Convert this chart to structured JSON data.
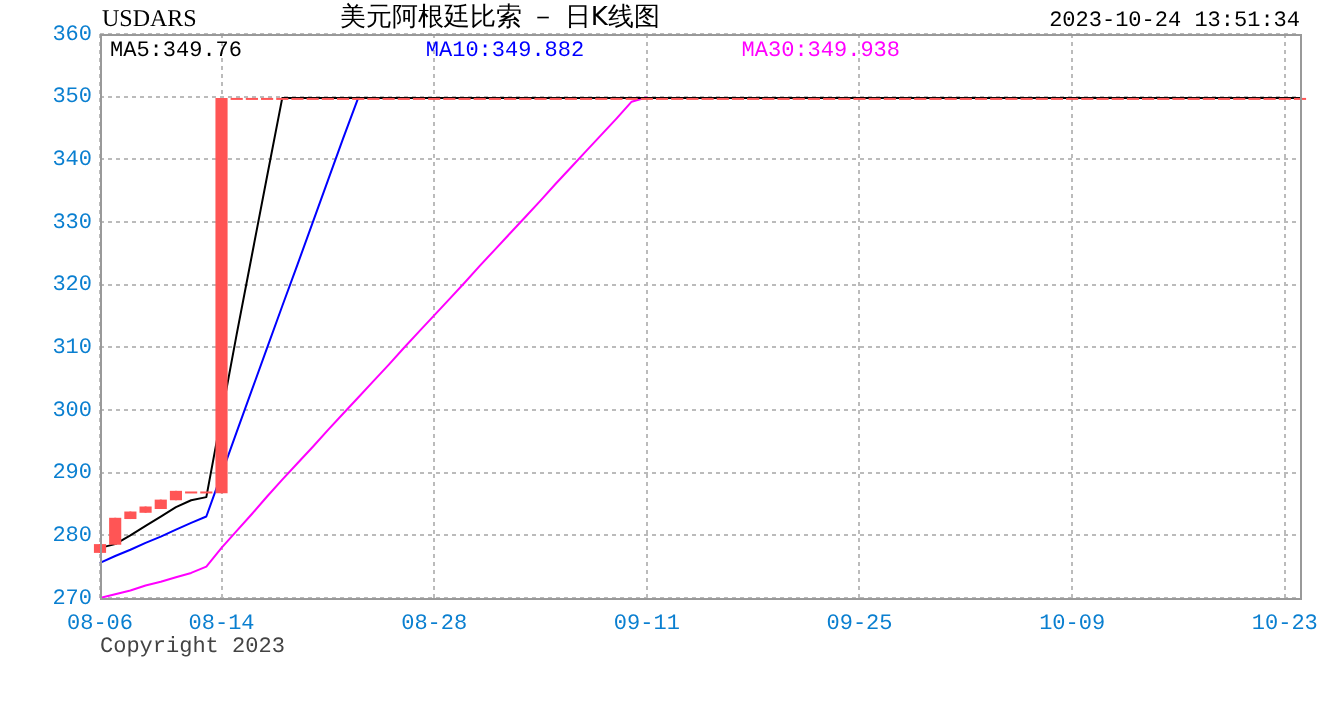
{
  "chart_data": {
    "type": "candlestick",
    "title": "美元阿根廷比索 － 日K线图",
    "ylabel": "USDARS",
    "color": "#ff5555",
    "categories": [
      "08-06",
      null,
      null,
      null,
      null,
      null,
      null,
      null,
      "08-14",
      null,
      null,
      null,
      null,
      null,
      null,
      null,
      null,
      null,
      null,
      null,
      null,
      null,
      "08-28",
      null,
      null,
      null,
      null,
      null,
      null,
      null,
      null,
      null,
      null,
      null,
      null,
      null,
      "09-11",
      null,
      null,
      null,
      null,
      null,
      null,
      null,
      null,
      null,
      null,
      null,
      null,
      null,
      "09-25",
      null,
      null,
      null,
      null,
      null,
      null,
      null,
      null,
      null,
      null,
      null,
      null,
      null,
      "10-09",
      null,
      null,
      null,
      null,
      null,
      null,
      null,
      null,
      null,
      null,
      null,
      null,
      null,
      "10-23",
      null
    ],
    "ohlc": [
      [
        277.2,
        278.6,
        277.2,
        278.6
      ],
      [
        278.5,
        282.8,
        278.5,
        282.8
      ],
      [
        282.6,
        283.8,
        282.6,
        283.8
      ],
      [
        283.6,
        284.6,
        283.6,
        284.6
      ],
      [
        284.2,
        285.7,
        284.2,
        285.7
      ],
      [
        285.6,
        287.1,
        285.6,
        287.1
      ],
      [
        287,
        287,
        287,
        287
      ],
      [
        287,
        287,
        287,
        287
      ],
      [
        286.7,
        349.8,
        286.7,
        349.8
      ],
      [
        349.8,
        349.8,
        349.8,
        349.8
      ],
      [
        349.8,
        349.8,
        349.8,
        349.8
      ],
      [
        349.8,
        349.8,
        349.8,
        349.8
      ],
      [
        349.8,
        349.8,
        349.8,
        349.8
      ],
      [
        349.8,
        349.8,
        349.8,
        349.8
      ],
      [
        349.8,
        349.8,
        349.8,
        349.8
      ],
      [
        349.8,
        349.8,
        349.8,
        349.8
      ],
      [
        349.8,
        349.8,
        349.8,
        349.8
      ],
      [
        349.8,
        349.8,
        349.8,
        349.8
      ],
      [
        349.8,
        349.8,
        349.8,
        349.8
      ],
      [
        349.8,
        349.8,
        349.8,
        349.8
      ],
      [
        349.8,
        349.8,
        349.8,
        349.8
      ],
      [
        349.8,
        349.8,
        349.8,
        349.8
      ],
      [
        349.8,
        349.8,
        349.8,
        349.8
      ],
      [
        349.8,
        349.8,
        349.8,
        349.8
      ],
      [
        349.8,
        349.8,
        349.8,
        349.8
      ],
      [
        349.8,
        349.8,
        349.8,
        349.8
      ],
      [
        349.8,
        349.8,
        349.8,
        349.8
      ],
      [
        349.8,
        349.8,
        349.8,
        349.8
      ],
      [
        349.8,
        349.8,
        349.8,
        349.8
      ],
      [
        349.8,
        349.8,
        349.8,
        349.8
      ],
      [
        349.8,
        349.8,
        349.8,
        349.8
      ],
      [
        349.8,
        349.8,
        349.8,
        349.8
      ],
      [
        349.8,
        349.8,
        349.8,
        349.8
      ],
      [
        349.8,
        349.8,
        349.8,
        349.8
      ],
      [
        349.8,
        349.8,
        349.8,
        349.8
      ],
      [
        349.8,
        349.8,
        349.8,
        349.8
      ],
      [
        349.8,
        349.8,
        349.8,
        349.8
      ],
      [
        349.8,
        349.8,
        349.8,
        349.8
      ],
      [
        349.8,
        349.8,
        349.8,
        349.8
      ],
      [
        349.8,
        349.8,
        349.8,
        349.8
      ],
      [
        349.8,
        349.8,
        349.8,
        349.8
      ],
      [
        349.8,
        349.8,
        349.8,
        349.8
      ],
      [
        349.8,
        349.8,
        349.8,
        349.8
      ],
      [
        349.8,
        349.8,
        349.8,
        349.8
      ],
      [
        349.8,
        349.8,
        349.8,
        349.8
      ],
      [
        349.8,
        349.8,
        349.8,
        349.8
      ],
      [
        349.8,
        349.8,
        349.8,
        349.8
      ],
      [
        349.8,
        349.8,
        349.8,
        349.8
      ],
      [
        349.8,
        349.8,
        349.8,
        349.8
      ],
      [
        349.8,
        349.8,
        349.8,
        349.8
      ],
      [
        349.8,
        349.8,
        349.8,
        349.8
      ],
      [
        349.8,
        349.8,
        349.8,
        349.8
      ],
      [
        349.8,
        349.8,
        349.8,
        349.8
      ],
      [
        349.8,
        349.8,
        349.8,
        349.8
      ],
      [
        349.8,
        349.8,
        349.8,
        349.8
      ],
      [
        349.8,
        349.8,
        349.8,
        349.8
      ],
      [
        349.8,
        349.8,
        349.8,
        349.8
      ],
      [
        349.8,
        349.8,
        349.8,
        349.8
      ],
      [
        349.8,
        349.8,
        349.8,
        349.8
      ],
      [
        349.8,
        349.8,
        349.8,
        349.8
      ],
      [
        349.8,
        349.8,
        349.8,
        349.8
      ],
      [
        349.8,
        349.8,
        349.8,
        349.8
      ],
      [
        349.8,
        349.8,
        349.8,
        349.8
      ],
      [
        349.8,
        349.8,
        349.8,
        349.8
      ],
      [
        349.8,
        349.8,
        349.8,
        349.8
      ],
      [
        349.8,
        349.8,
        349.8,
        349.8
      ],
      [
        349.8,
        349.8,
        349.8,
        349.8
      ],
      [
        349.8,
        349.8,
        349.8,
        349.8
      ],
      [
        349.8,
        349.8,
        349.8,
        349.8
      ],
      [
        349.8,
        349.8,
        349.8,
        349.8
      ],
      [
        349.8,
        349.8,
        349.8,
        349.8
      ],
      [
        349.8,
        349.8,
        349.8,
        349.8
      ],
      [
        349.8,
        349.8,
        349.8,
        349.8
      ],
      [
        349.8,
        349.8,
        349.8,
        349.8
      ],
      [
        349.8,
        349.8,
        349.8,
        349.8
      ],
      [
        349.8,
        349.8,
        349.8,
        349.8
      ],
      [
        349.8,
        349.8,
        349.8,
        349.8
      ],
      [
        349.8,
        349.8,
        349.8,
        349.8
      ],
      [
        349.8,
        349.8,
        349.8,
        349.8
      ],
      [
        349.8,
        349.8,
        349.8,
        349.8
      ]
    ],
    "series": [
      {
        "name": "MA5:349.76",
        "type": "line",
        "color": "#000000",
        "values": [
          278.0,
          278.6,
          280.0,
          281.5,
          283.0,
          284.5,
          285.6,
          286.1,
          null,
          312.1,
          324.7,
          337.3,
          349.8,
          349.8,
          349.8,
          349.8,
          349.8,
          349.8,
          349.8,
          349.8,
          349.8,
          349.8,
          349.8,
          349.8,
          349.8,
          349.8,
          349.8,
          349.8,
          349.8,
          349.8,
          349.8,
          349.8,
          349.8,
          349.8,
          349.8,
          349.8,
          349.8,
          349.8,
          349.8,
          349.8,
          349.8,
          349.8,
          349.8,
          349.8,
          349.8,
          349.8,
          349.8,
          349.8,
          349.8,
          349.8,
          349.8,
          349.8,
          349.8,
          349.8,
          349.8,
          349.8,
          349.8,
          349.8,
          349.8,
          349.8,
          349.8,
          349.8,
          349.8,
          349.8,
          349.8,
          349.8,
          349.8,
          349.8,
          349.8,
          349.8,
          349.8,
          349.8,
          349.8,
          349.8,
          349.8,
          349.8,
          349.8,
          349.8,
          349.8,
          349.8
        ]
      },
      {
        "name": "MA10:349.882",
        "type": "line",
        "color": "#0000ff",
        "values": [
          275.6,
          276.7,
          277.7,
          278.8,
          279.8,
          280.9,
          282.0,
          283.0,
          null,
          296.5,
          303.2,
          309.9,
          316.6,
          323.2,
          329.9,
          336.6,
          343.3,
          349.8,
          null,
          null,
          null,
          null,
          null,
          null,
          null,
          null,
          null,
          null,
          null,
          null,
          null,
          null,
          null,
          null,
          null,
          null,
          null,
          null,
          null,
          null,
          null,
          null,
          null,
          null,
          null,
          null,
          null,
          null,
          null,
          null,
          null,
          null,
          null,
          null,
          null,
          null,
          null,
          null,
          null,
          null,
          null,
          null,
          null,
          null,
          null,
          null,
          null,
          null,
          null,
          null,
          null,
          null,
          null,
          null,
          null,
          null,
          null,
          null,
          null,
          null
        ]
      },
      {
        "name": "MA30:349.938",
        "type": "line",
        "color": "#ff00ff",
        "values": [
          270,
          270.6,
          271.2,
          272,
          272.6,
          273.3,
          274,
          275,
          278,
          280.7,
          283.4,
          286.2,
          288.9,
          291.5,
          294.1,
          296.8,
          299.4,
          302.0,
          304.6,
          307.2,
          309.9,
          312.5,
          315.1,
          317.7,
          320.3,
          323.0,
          325.6,
          328.2,
          330.8,
          333.4,
          336.1,
          338.7,
          341.3,
          343.9,
          346.5,
          349.2,
          349.9,
          null,
          null,
          null,
          null,
          null,
          null,
          null,
          null,
          null,
          null,
          null,
          null,
          null,
          null,
          null,
          null,
          null,
          null,
          null,
          null,
          null,
          null,
          null,
          null,
          null,
          null,
          null,
          null,
          null,
          null,
          null,
          null,
          null,
          null,
          null,
          null,
          null,
          null,
          null,
          null,
          null,
          null,
          null
        ]
      }
    ],
    "ylim": [
      270,
      360
    ],
    "yticks": [
      270,
      280,
      290,
      300,
      310,
      320,
      330,
      340,
      350,
      360
    ],
    "grid": true,
    "legend": "top",
    "annotations": [
      "2023-10-24 13:51:34",
      "Copyright 2023"
    ]
  }
}
